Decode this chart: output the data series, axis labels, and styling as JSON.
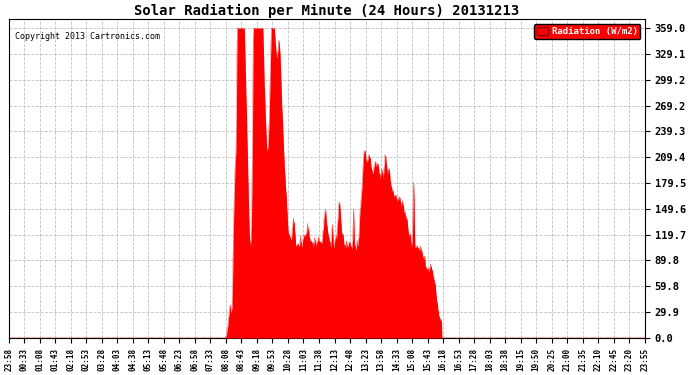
{
  "title": "Solar Radiation per Minute (24 Hours) 20131213",
  "copyright_text": "Copyright 2013 Cartronics.com",
  "legend_label": "Radiation (W/m2)",
  "background_color": "#ffffff",
  "fill_color": "#ff0000",
  "grid_color": "#bbbbbb",
  "ytick_values": [
    0.0,
    29.9,
    59.8,
    89.8,
    119.7,
    149.6,
    179.5,
    209.4,
    239.3,
    269.2,
    299.2,
    329.1,
    359.0
  ],
  "ymax": 369.0,
  "ymin": 0.0,
  "xtick_labels": [
    "23:58",
    "00:33",
    "01:08",
    "01:43",
    "02:18",
    "02:53",
    "03:28",
    "04:03",
    "04:38",
    "05:13",
    "05:48",
    "06:23",
    "06:58",
    "07:33",
    "08:08",
    "08:43",
    "09:18",
    "09:53",
    "10:28",
    "11:03",
    "11:38",
    "12:13",
    "12:48",
    "13:23",
    "13:58",
    "14:33",
    "15:08",
    "15:43",
    "16:18",
    "16:53",
    "17:28",
    "18:03",
    "18:38",
    "19:15",
    "19:50",
    "20:25",
    "21:00",
    "21:35",
    "22:10",
    "22:45",
    "23:20",
    "23:55"
  ],
  "num_minutes": 1440
}
